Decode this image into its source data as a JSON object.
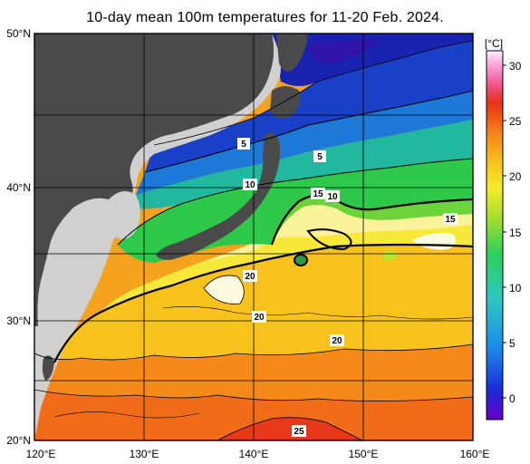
{
  "title": "10-day mean 100m temperatures for 11-20 Feb. 2024.",
  "map": {
    "lat_labels": [
      "50°N",
      "40°N",
      "30°N",
      "20°N"
    ],
    "lon_labels": [
      "120°E",
      "130°E",
      "140°E",
      "150°E",
      "160°E"
    ],
    "lat_range": [
      20,
      50
    ],
    "lon_range": [
      120,
      160
    ],
    "contour_labels": [
      "5",
      "5",
      "10",
      "10",
      "15",
      "15",
      "20",
      "20",
      "20",
      "25"
    ],
    "colors": {
      "land": "#4a4a4a",
      "outside_domain": "#d0d0d0",
      "contour": "#000000"
    }
  },
  "colorbar": {
    "unit": "[°C]",
    "ticks": [
      "30",
      "25",
      "20",
      "15",
      "10",
      "5",
      "0"
    ],
    "range": [
      -2,
      31
    ],
    "stops": [
      "#6a00c8",
      "#1a2ad8",
      "#1e8ee8",
      "#2ec8c0",
      "#2cd05a",
      "#a8e02c",
      "#f6ec2a",
      "#f8c01c",
      "#f48a18",
      "#e83018",
      "#f05890",
      "#f8a0d8",
      "#fff2ff"
    ]
  }
}
